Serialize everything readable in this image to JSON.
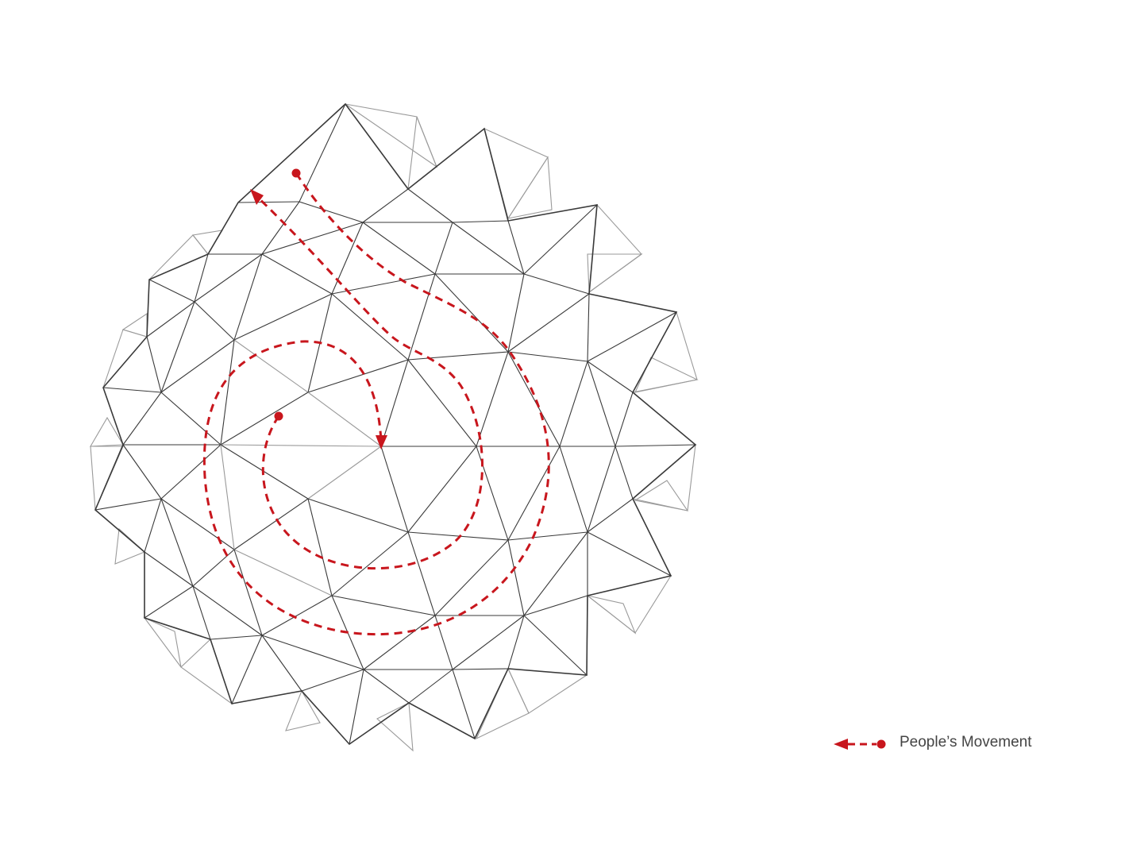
{
  "colors": {
    "line": "#3a3a3a",
    "line_light": "#9a9a9a",
    "path": "#c8161d",
    "background": "#ffffff"
  },
  "diagram": {
    "description_icon": "geodesic-canopy-plan",
    "legend": {
      "icon": "dashed-arrow-with-dot-icon",
      "label": "People’s Movement"
    }
  }
}
